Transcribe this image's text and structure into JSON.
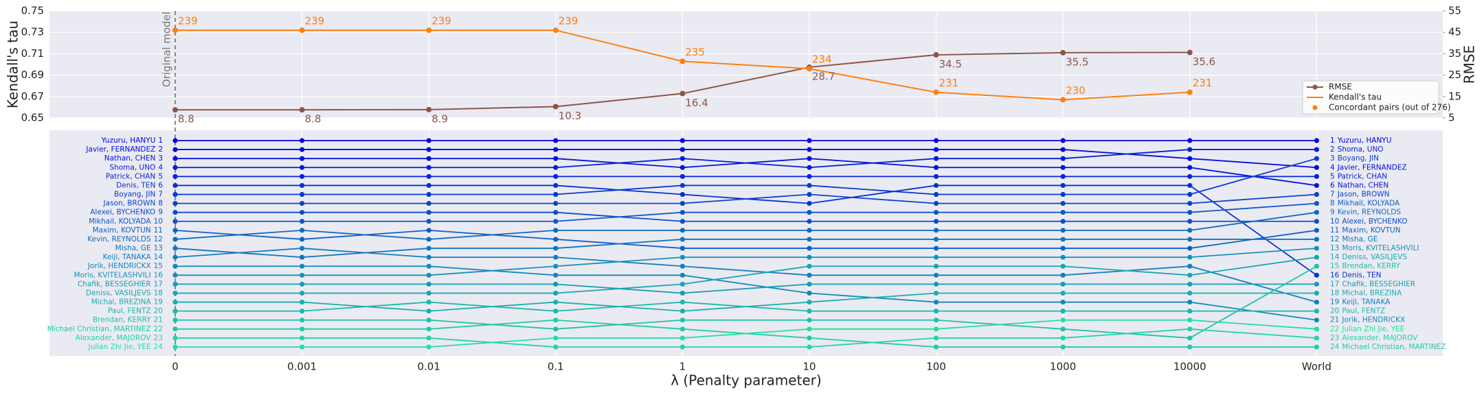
{
  "chart_data": [
    {
      "type": "line",
      "ylabel": "Kendall's tau",
      "y2label": "RMSE",
      "ylim": [
        0.65,
        0.75
      ],
      "yticks": [
        0.65,
        0.67,
        0.69,
        0.71,
        0.73,
        0.75
      ],
      "y2lim": [
        5,
        55
      ],
      "y2ticks": [
        5,
        15,
        25,
        35,
        45,
        55
      ],
      "grid": true,
      "legend": "lower right",
      "annotation": "Original model",
      "series": [
        {
          "name": "RMSE",
          "color": "#8c564b",
          "axis": "y2",
          "values": [
            8.8,
            8.8,
            8.9,
            10.3,
            16.4,
            28.7,
            34.5,
            35.5,
            35.6
          ]
        },
        {
          "name": "Kendall's tau",
          "color": "#ff7f0e",
          "values": [
            0.732,
            0.732,
            0.732,
            0.732,
            0.703,
            0.696,
            0.674,
            0.667,
            0.674
          ]
        },
        {
          "name": "Concordant pairs (out of 276)",
          "color": "#ff7f0e",
          "values": [
            239,
            239,
            239,
            239,
            235,
            234,
            231,
            230,
            231
          ]
        }
      ]
    },
    {
      "type": "bump",
      "xlabel": "λ (Penalty parameter)",
      "categories": [
        "0",
        "0.001",
        "0.01",
        "0.1",
        "1",
        "10",
        "100",
        "1000",
        "10000",
        "World"
      ],
      "series": [
        {
          "name": "Yuzuru, HANYU",
          "color": "#0000e0",
          "values": [
            1,
            1,
            1,
            1,
            1,
            1,
            1,
            1,
            1,
            1
          ]
        },
        {
          "name": "Javier, FERNANDEZ",
          "color": "#010ade",
          "values": [
            2,
            2,
            2,
            2,
            2,
            2,
            2,
            2,
            3,
            4
          ]
        },
        {
          "name": "Nathan, CHEN",
          "color": "#0313da",
          "values": [
            3,
            3,
            3,
            3,
            4,
            3,
            4,
            4,
            4,
            6
          ]
        },
        {
          "name": "Shoma, UNO",
          "color": "#041dd8",
          "values": [
            4,
            4,
            4,
            4,
            3,
            4,
            3,
            3,
            2,
            2
          ]
        },
        {
          "name": "Patrick, CHAN",
          "color": "#0627d5",
          "values": [
            5,
            5,
            5,
            5,
            5,
            5,
            5,
            5,
            5,
            5
          ]
        },
        {
          "name": "Denis, TEN",
          "color": "#0731d2",
          "values": [
            6,
            6,
            6,
            6,
            7,
            8,
            6,
            6,
            6,
            16
          ]
        },
        {
          "name": "Boyang, JIN",
          "color": "#083acf",
          "values": [
            7,
            7,
            7,
            7,
            6,
            6,
            7,
            7,
            7,
            3
          ]
        },
        {
          "name": "Jason, BROWN",
          "color": "#0a44cd",
          "values": [
            8,
            8,
            8,
            8,
            8,
            7,
            8,
            8,
            8,
            7
          ]
        },
        {
          "name": "Alexei, BYCHENKO",
          "color": "#0b4eca",
          "values": [
            9,
            9,
            9,
            9,
            10,
            10,
            10,
            10,
            10,
            10
          ]
        },
        {
          "name": "Mikhail, KOLYADA",
          "color": "#0d58c7",
          "values": [
            10,
            10,
            10,
            10,
            9,
            9,
            9,
            9,
            9,
            8
          ]
        },
        {
          "name": "Maxim, KOVTUN",
          "color": "#0e61c4",
          "values": [
            11,
            12,
            11,
            12,
            13,
            13,
            13,
            13,
            13,
            11
          ]
        },
        {
          "name": "Kevin, REYNOLDS",
          "color": "#0f6bc1",
          "values": [
            12,
            11,
            12,
            11,
            11,
            11,
            11,
            11,
            11,
            9
          ]
        },
        {
          "name": "Misha, GE",
          "color": "#1175bf",
          "values": [
            13,
            14,
            13,
            13,
            12,
            12,
            12,
            12,
            12,
            12
          ]
        },
        {
          "name": "Keiji, TANAKA",
          "color": "#127fbc",
          "values": [
            14,
            13,
            14,
            14,
            15,
            16,
            16,
            16,
            15,
            19
          ]
        },
        {
          "name": "Jorik, HENDRICKX",
          "color": "#1388b9",
          "values": [
            15,
            15,
            15,
            16,
            16,
            18,
            19,
            19,
            19,
            21
          ]
        },
        {
          "name": "Moris, KVITELASHVILI",
          "color": "#1592b6",
          "values": [
            16,
            16,
            16,
            15,
            14,
            14,
            14,
            14,
            14,
            13
          ]
        },
        {
          "name": "Chafik, BESSEGHIER",
          "color": "#169cb3",
          "values": [
            17,
            17,
            17,
            17,
            18,
            17,
            17,
            17,
            17,
            17
          ]
        },
        {
          "name": "Deniss, VASILJEVS",
          "color": "#18a6b1",
          "values": [
            18,
            18,
            18,
            18,
            17,
            15,
            15,
            15,
            16,
            14
          ]
        },
        {
          "name": "Michal, BREZINA",
          "color": "#19afae",
          "values": [
            19,
            19,
            20,
            19,
            20,
            19,
            18,
            18,
            18,
            18
          ]
        },
        {
          "name": "Paul, FENTZ",
          "color": "#1ab9ab",
          "values": [
            20,
            20,
            19,
            20,
            19,
            20,
            20,
            20,
            20,
            20
          ]
        },
        {
          "name": "Brendan, KERRY",
          "color": "#1cc3a8",
          "values": [
            21,
            21,
            21,
            22,
            21,
            21,
            21,
            22,
            23,
            15
          ]
        },
        {
          "name": "Michael Christian, MARTINEZ",
          "color": "#1dcda5",
          "values": [
            22,
            22,
            22,
            21,
            22,
            23,
            24,
            24,
            24,
            24
          ]
        },
        {
          "name": "Alexander, MAJOROV",
          "color": "#1fd6a3",
          "values": [
            23,
            23,
            23,
            24,
            24,
            24,
            23,
            23,
            22,
            23
          ]
        },
        {
          "name": "Julian Zhi Jie, YEE",
          "color": "#20e0a0",
          "values": [
            24,
            24,
            24,
            23,
            23,
            22,
            22,
            21,
            21,
            22
          ]
        }
      ]
    }
  ]
}
